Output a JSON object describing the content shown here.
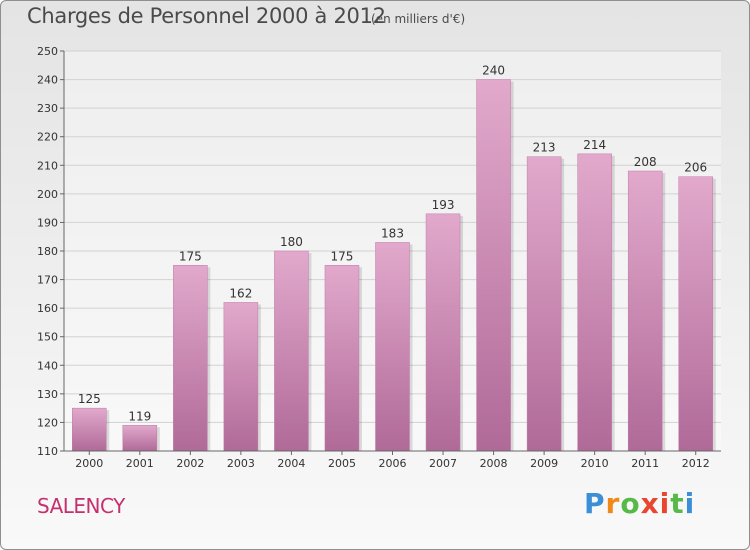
{
  "title": "Charges de Personnel 2000 à 2012",
  "subtitle": "(en milliers d'€)",
  "town": "SALENCY",
  "brand": "Proxiti",
  "brand_colors": [
    "#3b8fd6",
    "#ef8a1a",
    "#57b947",
    "#e8462f",
    "#e8462f",
    "#57b947",
    "#3b8fd6"
  ],
  "colors": {
    "bar": "#cc88b3",
    "bar_light": "#e2a9cc",
    "bar_dark": "#b06a98",
    "town": "#c5306f"
  },
  "chart_data": {
    "type": "bar",
    "title": "Charges de Personnel 2000 à 2012",
    "subtitle": "(en milliers d'€)",
    "categories": [
      "2000",
      "2001",
      "2002",
      "2003",
      "2004",
      "2005",
      "2006",
      "2007",
      "2008",
      "2009",
      "2010",
      "2011",
      "2012"
    ],
    "values": [
      125,
      119,
      175,
      162,
      180,
      175,
      183,
      193,
      240,
      213,
      214,
      208,
      206
    ],
    "ylim": [
      110,
      250
    ],
    "yticks": [
      110,
      120,
      130,
      140,
      150,
      160,
      170,
      180,
      190,
      200,
      210,
      220,
      230,
      240,
      250
    ],
    "grid": true,
    "data_labels": true
  }
}
